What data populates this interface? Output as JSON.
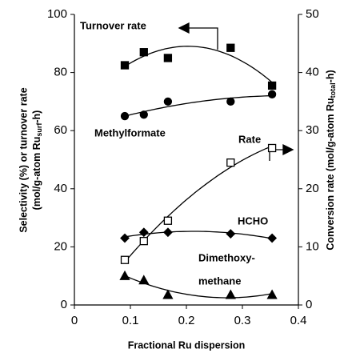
{
  "chart_data": {
    "type": "scatter",
    "xlabel": "Fractional Ru dispersion",
    "ylabel": [
      "Selectivity (%) or turnover rate",
      "(mol/g-atom Ru",
      "surf",
      "-h)"
    ],
    "y2label": [
      "Conversion rate (mol/g-atom Ru",
      "total",
      "-h)"
    ],
    "x": [
      0.09,
      0.124,
      0.167,
      0.279,
      0.353
    ],
    "xlim": [
      0,
      0.4
    ],
    "xticks": [
      0,
      0.1,
      0.2,
      0.3,
      0.4
    ],
    "ylim": [
      0,
      100
    ],
    "yticks": [
      0,
      20,
      40,
      60,
      80,
      100
    ],
    "y2lim": [
      0,
      50
    ],
    "y2ticks": [
      0,
      10,
      20,
      30,
      40,
      50
    ],
    "series": [
      {
        "name": "Turnover rate",
        "marker": "square",
        "filled": true,
        "color": "#000000",
        "values": [
          82.5,
          87,
          85,
          88.5,
          75.5
        ]
      },
      {
        "name": "Methylformate",
        "marker": "circle",
        "filled": true,
        "color": "#000000",
        "values": [
          65,
          65.5,
          70,
          70,
          72.5
        ]
      },
      {
        "name": "Rate",
        "marker": "square",
        "filled": false,
        "color": "#000000",
        "axis": "y2",
        "values": [
          7.75,
          11,
          14.5,
          24.5,
          27
        ]
      },
      {
        "name": "HCHO",
        "marker": "diamond",
        "filled": true,
        "color": "#000000",
        "values": [
          23,
          25,
          25,
          24.5,
          23
        ]
      },
      {
        "name": [
          "Dimethoxy-",
          "methane"
        ],
        "marker": "triangle",
        "filled": true,
        "color": "#000000",
        "values": [
          10,
          8.5,
          3.5,
          3.5,
          3.5
        ]
      }
    ]
  }
}
